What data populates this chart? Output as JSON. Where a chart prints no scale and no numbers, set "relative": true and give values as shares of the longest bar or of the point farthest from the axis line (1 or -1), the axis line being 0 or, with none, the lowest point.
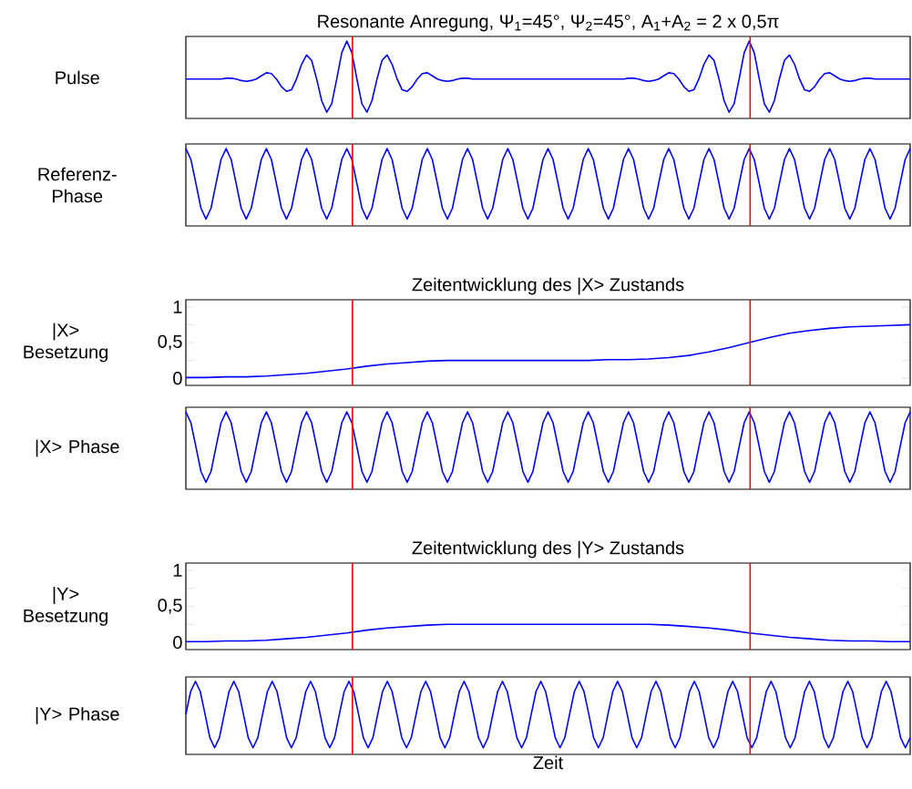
{
  "chart_data": [
    {
      "type": "line",
      "title": "Resonante Anregung, Ψ$_{1}$=45°, Ψ$_{2}$=45°, A$_{1}$+A$_{2}$ = 2 x 0,5π",
      "ylabel": "Pulse",
      "relative": true,
      "tick_labels": false,
      "categories": [
        null,
        null,
        null,
        null,
        null,
        null,
        null,
        null,
        null,
        null,
        null,
        null,
        null,
        null,
        null,
        null,
        null,
        null,
        null,
        null,
        null,
        null,
        null,
        null,
        null,
        null,
        null,
        null,
        null,
        null,
        null,
        null,
        null,
        null,
        null,
        null,
        null,
        null,
        null,
        null,
        null,
        null,
        null,
        null,
        null,
        null,
        null,
        null,
        null,
        null,
        null,
        null,
        null,
        null,
        null,
        null,
        null,
        null,
        null,
        null,
        null,
        null,
        null,
        null,
        null,
        null,
        null,
        null,
        null,
        null,
        null,
        null,
        null,
        null,
        null,
        null,
        null,
        null,
        null,
        null,
        null,
        null,
        null,
        null,
        null,
        null,
        null,
        null,
        null,
        null,
        null,
        null,
        null,
        null,
        null,
        null,
        null,
        null,
        null,
        null,
        null,
        null,
        null,
        null,
        null,
        null,
        null,
        null,
        null,
        null,
        null,
        null,
        null,
        null,
        null,
        null,
        null,
        null,
        null,
        null,
        null,
        null,
        null,
        null,
        null,
        null,
        null,
        null,
        null,
        null,
        null,
        null,
        null,
        null,
        null,
        null,
        null,
        null,
        null,
        null,
        null,
        null,
        null,
        null,
        null
      ],
      "series": [
        {
          "color": "#0000ff",
          "values": [
            0.51,
            0.51,
            0.51,
            0.51,
            0.51,
            0.51,
            0.51,
            0.51,
            0.52,
            0.52,
            0.51,
            0.49,
            0.48,
            0.49,
            0.51,
            0.55,
            0.59,
            0.58,
            0.51,
            0.41,
            0.35,
            0.37,
            0.51,
            0.7,
            0.82,
            0.75,
            0.51,
            0.23,
            0.08,
            0.19,
            0.51,
            0.85,
            1,
            0.85,
            0.51,
            0.19,
            0.08,
            0.23,
            0.51,
            0.75,
            0.82,
            0.7,
            0.51,
            0.37,
            0.35,
            0.41,
            0.51,
            0.58,
            0.59,
            0.55,
            0.51,
            0.49,
            0.48,
            0.49,
            0.51,
            0.52,
            0.52,
            0.51,
            0.51,
            0.51,
            0.51,
            0.51,
            0.51,
            0.51,
            0.51,
            0.51,
            0.51,
            0.51,
            0.51,
            0.51,
            0.51,
            0.51,
            0.51,
            0.51,
            0.51,
            0.51,
            0.51,
            0.51,
            0.51,
            0.51,
            0.51,
            0.51,
            0.51,
            0.51,
            0.51,
            0.51,
            0.51,
            0.51,
            0.52,
            0.52,
            0.51,
            0.49,
            0.48,
            0.49,
            0.51,
            0.55,
            0.59,
            0.58,
            0.51,
            0.41,
            0.35,
            0.37,
            0.51,
            0.7,
            0.82,
            0.75,
            0.51,
            0.23,
            0.08,
            0.19,
            0.51,
            0.85,
            1,
            0.85,
            0.51,
            0.19,
            0.08,
            0.23,
            0.51,
            0.75,
            0.82,
            0.7,
            0.51,
            0.37,
            0.35,
            0.41,
            0.51,
            0.58,
            0.59,
            0.55,
            0.51,
            0.49,
            0.48,
            0.49,
            0.51,
            0.52,
            0.52,
            0.51,
            0.51,
            0.51,
            0.51,
            0.51,
            0.51,
            0.51,
            0.51
          ]
        }
      ]
    },
    {
      "type": "line",
      "ylabel": "Referenz-Phase",
      "relative": true,
      "tick_labels": false,
      "categories": [
        null,
        null,
        null,
        null,
        null,
        null,
        null,
        null,
        null,
        null,
        null,
        null,
        null,
        null,
        null,
        null,
        null,
        null,
        null,
        null,
        null,
        null,
        null,
        null,
        null,
        null,
        null,
        null,
        null,
        null,
        null,
        null,
        null,
        null,
        null,
        null,
        null,
        null,
        null,
        null,
        null,
        null,
        null,
        null,
        null,
        null,
        null,
        null,
        null,
        null,
        null,
        null,
        null,
        null,
        null,
        null,
        null,
        null,
        null,
        null,
        null,
        null,
        null,
        null,
        null,
        null,
        null,
        null,
        null,
        null,
        null,
        null,
        null,
        null,
        null,
        null,
        null,
        null,
        null,
        null,
        null,
        null,
        null,
        null,
        null,
        null,
        null,
        null,
        null,
        null,
        null,
        null,
        null,
        null,
        null,
        null,
        null,
        null,
        null,
        null,
        null,
        null,
        null,
        null,
        null,
        null,
        null,
        null,
        null,
        null,
        null,
        null,
        null,
        null,
        null,
        null,
        null,
        null,
        null,
        null,
        null,
        null,
        null,
        null,
        null,
        null,
        null,
        null,
        null,
        null,
        null,
        null,
        null,
        null,
        null,
        null,
        null,
        null,
        null,
        null,
        null,
        null,
        null,
        null,
        null
      ],
      "series": [
        {
          "color": "#0000ff",
          "values": [
            1,
            0.86,
            0.55,
            0.23,
            0.09,
            0.23,
            0.55,
            0.86,
            1,
            0.86,
            0.55,
            0.23,
            0.09,
            0.23,
            0.55,
            0.86,
            1,
            0.86,
            0.55,
            0.23,
            0.09,
            0.23,
            0.55,
            0.86,
            1,
            0.86,
            0.55,
            0.23,
            0.09,
            0.23,
            0.55,
            0.86,
            1,
            0.86,
            0.55,
            0.23,
            0.09,
            0.23,
            0.55,
            0.86,
            1,
            0.86,
            0.55,
            0.23,
            0.09,
            0.23,
            0.55,
            0.86,
            1,
            0.86,
            0.55,
            0.23,
            0.09,
            0.23,
            0.55,
            0.86,
            1,
            0.86,
            0.55,
            0.23,
            0.09,
            0.23,
            0.55,
            0.86,
            1,
            0.86,
            0.55,
            0.23,
            0.09,
            0.23,
            0.55,
            0.86,
            1,
            0.86,
            0.55,
            0.23,
            0.09,
            0.23,
            0.55,
            0.86,
            1,
            0.86,
            0.55,
            0.23,
            0.09,
            0.23,
            0.55,
            0.86,
            1,
            0.86,
            0.55,
            0.23,
            0.09,
            0.23,
            0.55,
            0.86,
            1,
            0.86,
            0.55,
            0.23,
            0.09,
            0.23,
            0.55,
            0.86,
            1,
            0.86,
            0.55,
            0.23,
            0.09,
            0.23,
            0.55,
            0.86,
            1,
            0.86,
            0.55,
            0.23,
            0.09,
            0.23,
            0.55,
            0.86,
            1,
            0.86,
            0.55,
            0.23,
            0.09,
            0.23,
            0.55,
            0.86,
            1,
            0.86,
            0.55,
            0.23,
            0.09,
            0.23,
            0.55,
            0.86,
            1,
            0.86,
            0.55,
            0.23,
            0.09,
            0.23,
            0.55,
            0.86,
            1
          ]
        }
      ]
    },
    {
      "type": "line",
      "title": "Zeitentwicklung des |X> Zustands",
      "ylabel": "|X> Besetzung",
      "tick_labels": "y",
      "ylim": [
        -0.1,
        1.1
      ],
      "yticks": [
        0,
        {
          "value": 0.25,
          "label": null
        },
        {
          "value": 0.5,
          "label": "0,5"
        },
        {
          "value": 0.75,
          "label": null
        },
        1
      ],
      "categories": [
        null,
        null,
        null,
        null,
        null,
        null,
        null,
        null,
        null,
        null,
        null,
        null,
        null,
        null,
        null,
        null,
        null,
        null,
        null,
        null,
        null,
        null,
        null,
        null,
        null,
        null,
        null,
        null,
        null,
        null,
        null,
        null,
        null,
        null,
        null,
        null,
        null
      ],
      "series": [
        {
          "color": "#0000ff",
          "values": [
            0.01,
            0.01,
            0.02,
            0.02,
            0.03,
            0.05,
            0.07,
            0.1,
            0.13,
            0.17,
            0.2,
            0.22,
            0.24,
            0.25,
            0.25,
            0.25,
            0.25,
            0.25,
            0.25,
            0.25,
            0.25,
            0.26,
            0.26,
            0.27,
            0.29,
            0.32,
            0.37,
            0.43,
            0.5,
            0.57,
            0.63,
            0.67,
            0.7,
            0.72,
            0.73,
            0.74,
            0.75
          ]
        }
      ]
    },
    {
      "type": "line",
      "ylabel": "|X> Phase",
      "relative": true,
      "tick_labels": false,
      "categories": [
        null,
        null,
        null,
        null,
        null,
        null,
        null,
        null,
        null,
        null,
        null,
        null,
        null,
        null,
        null,
        null,
        null,
        null,
        null,
        null,
        null,
        null,
        null,
        null,
        null,
        null,
        null,
        null,
        null,
        null,
        null,
        null,
        null,
        null,
        null,
        null,
        null,
        null,
        null,
        null,
        null,
        null,
        null,
        null,
        null,
        null,
        null,
        null,
        null,
        null,
        null,
        null,
        null,
        null,
        null,
        null,
        null,
        null,
        null,
        null,
        null,
        null,
        null,
        null,
        null,
        null,
        null,
        null,
        null,
        null,
        null,
        null,
        null,
        null,
        null,
        null,
        null,
        null,
        null,
        null,
        null,
        null,
        null,
        null,
        null,
        null,
        null,
        null,
        null,
        null,
        null,
        null,
        null,
        null,
        null,
        null,
        null,
        null,
        null,
        null,
        null,
        null,
        null,
        null,
        null,
        null,
        null,
        null,
        null,
        null,
        null,
        null,
        null,
        null,
        null,
        null,
        null,
        null,
        null,
        null,
        null,
        null,
        null,
        null,
        null,
        null,
        null,
        null,
        null,
        null,
        null,
        null,
        null,
        null,
        null,
        null,
        null,
        null,
        null,
        null,
        null,
        null,
        null,
        null,
        null
      ],
      "series": [
        {
          "color": "#0000ff",
          "values": [
            1,
            0.86,
            0.55,
            0.23,
            0.09,
            0.23,
            0.55,
            0.86,
            1,
            0.86,
            0.55,
            0.23,
            0.09,
            0.23,
            0.55,
            0.86,
            1,
            0.86,
            0.55,
            0.23,
            0.09,
            0.23,
            0.55,
            0.86,
            1,
            0.86,
            0.55,
            0.23,
            0.09,
            0.23,
            0.55,
            0.86,
            1,
            0.86,
            0.55,
            0.23,
            0.09,
            0.23,
            0.55,
            0.86,
            1,
            0.86,
            0.55,
            0.23,
            0.09,
            0.23,
            0.55,
            0.86,
            1,
            0.86,
            0.55,
            0.23,
            0.09,
            0.23,
            0.55,
            0.86,
            1,
            0.86,
            0.55,
            0.23,
            0.09,
            0.23,
            0.55,
            0.86,
            1,
            0.86,
            0.55,
            0.23,
            0.09,
            0.23,
            0.55,
            0.86,
            1,
            0.86,
            0.55,
            0.23,
            0.09,
            0.23,
            0.55,
            0.86,
            1,
            0.86,
            0.55,
            0.23,
            0.09,
            0.23,
            0.55,
            0.86,
            1,
            0.86,
            0.55,
            0.23,
            0.09,
            0.23,
            0.55,
            0.86,
            1,
            0.86,
            0.55,
            0.23,
            0.09,
            0.23,
            0.55,
            0.86,
            1,
            0.86,
            0.55,
            0.23,
            0.09,
            0.23,
            0.55,
            0.86,
            1,
            0.86,
            0.55,
            0.23,
            0.09,
            0.23,
            0.55,
            0.86,
            1,
            0.86,
            0.55,
            0.23,
            0.09,
            0.23,
            0.55,
            0.86,
            1,
            0.86,
            0.55,
            0.23,
            0.09,
            0.23,
            0.55,
            0.86,
            1,
            0.86,
            0.55,
            0.23,
            0.09,
            0.23,
            0.55,
            0.86,
            1
          ]
        }
      ]
    },
    {
      "type": "line",
      "title": "Zeitentwicklung des |Y> Zustands",
      "ylabel": "|Y> Besetzung",
      "tick_labels": "y",
      "ylim": [
        -0.1,
        1.1
      ],
      "yticks": [
        0,
        {
          "value": 0.25,
          "label": null
        },
        {
          "value": 0.5,
          "label": "0,5"
        },
        {
          "value": 0.75,
          "label": null
        },
        1
      ],
      "categories": [
        null,
        null,
        null,
        null,
        null,
        null,
        null,
        null,
        null,
        null,
        null,
        null,
        null,
        null,
        null,
        null,
        null,
        null,
        null,
        null,
        null,
        null,
        null,
        null,
        null,
        null,
        null,
        null,
        null,
        null,
        null,
        null,
        null,
        null,
        null,
        null,
        null
      ],
      "series": [
        {
          "color": "#0000ff",
          "values": [
            0.01,
            0.01,
            0.02,
            0.02,
            0.03,
            0.05,
            0.07,
            0.1,
            0.13,
            0.17,
            0.2,
            0.22,
            0.24,
            0.25,
            0.25,
            0.25,
            0.25,
            0.25,
            0.25,
            0.25,
            0.25,
            0.25,
            0.25,
            0.25,
            0.24,
            0.22,
            0.2,
            0.17,
            0.13,
            0.1,
            0.07,
            0.05,
            0.03,
            0.02,
            0.02,
            0.01,
            0.01
          ]
        }
      ]
    },
    {
      "type": "line",
      "ylabel": "|Y> Phase",
      "xlabel": "Zeit",
      "relative": true,
      "tick_labels": false,
      "categories": [
        null,
        null,
        null,
        null,
        null,
        null,
        null,
        null,
        null,
        null,
        null,
        null,
        null,
        null,
        null,
        null,
        null,
        null,
        null,
        null,
        null,
        null,
        null,
        null,
        null,
        null,
        null,
        null,
        null,
        null,
        null,
        null,
        null,
        null,
        null,
        null,
        null,
        null,
        null,
        null,
        null,
        null,
        null,
        null,
        null,
        null,
        null,
        null,
        null,
        null,
        null,
        null,
        null,
        null,
        null,
        null,
        null,
        null,
        null,
        null,
        null,
        null,
        null,
        null,
        null,
        null,
        null,
        null,
        null,
        null,
        null,
        null,
        null,
        null,
        null,
        null,
        null,
        null,
        null,
        null,
        null,
        null,
        null,
        null,
        null,
        null,
        null,
        null,
        null,
        null,
        null,
        null,
        null,
        null,
        null,
        null,
        null,
        null,
        null,
        null,
        null,
        null,
        null,
        null,
        null,
        null,
        null,
        null,
        null,
        null,
        null,
        null,
        null,
        null,
        null,
        null,
        null,
        null,
        null,
        null,
        null,
        null,
        null,
        null,
        null,
        null,
        null,
        null,
        null,
        null,
        null,
        null,
        null,
        null,
        null,
        null,
        null,
        null,
        null,
        null,
        null,
        null,
        null,
        null,
        null,
        null,
        null,
        null,
        null,
        null,
        null,
        null
      ],
      "series": [
        {
          "color": "#0000ff",
          "values": [
            0.55,
            0.86,
            1,
            0.86,
            0.55,
            0.23,
            0.09,
            0.23,
            0.55,
            0.86,
            1,
            0.86,
            0.55,
            0.23,
            0.09,
            0.23,
            0.55,
            0.86,
            1,
            0.86,
            0.55,
            0.23,
            0.09,
            0.23,
            0.55,
            0.86,
            1,
            0.86,
            0.55,
            0.23,
            0.09,
            0.23,
            0.55,
            0.86,
            1,
            0.86,
            0.55,
            0.23,
            0.09,
            0.23,
            0.55,
            0.86,
            1,
            0.86,
            0.55,
            0.23,
            0.09,
            0.23,
            0.55,
            0.86,
            1,
            0.86,
            0.55,
            0.23,
            0.09,
            0.23,
            0.55,
            0.86,
            1,
            0.86,
            0.55,
            0.23,
            0.09,
            0.23,
            0.55,
            0.86,
            1,
            0.86,
            0.55,
            0.23,
            0.09,
            0.23,
            0.55,
            0.86,
            1,
            0.86,
            0.55,
            0.23,
            0.09,
            0.23,
            0.55,
            0.86,
            1,
            0.86,
            0.55,
            0.23,
            0.09,
            0.23,
            0.55,
            0.86,
            1,
            0.86,
            0.55,
            0.23,
            0.09,
            0.23,
            0.55,
            0.86,
            1,
            0.86,
            0.55,
            0.23,
            0.09,
            0.23,
            0.55,
            0.86,
            1,
            0.86,
            0.55,
            0.23,
            0.09,
            0.23,
            0.55,
            0.86,
            1,
            0.86,
            0.55,
            0.23,
            0.09,
            0.23,
            0.55,
            0.86,
            1,
            0.86,
            0.55,
            0.23,
            0.09,
            0.23,
            0.55,
            0.86,
            1,
            0.86,
            0.55,
            0.23,
            0.09,
            0.23,
            0.55,
            0.86,
            1,
            0.86,
            0.55,
            0.23,
            0.09,
            0.23,
            0.55,
            0.86,
            1,
            0.86,
            0.55,
            0.23,
            0.09,
            0.23
          ]
        }
      ]
    }
  ]
}
